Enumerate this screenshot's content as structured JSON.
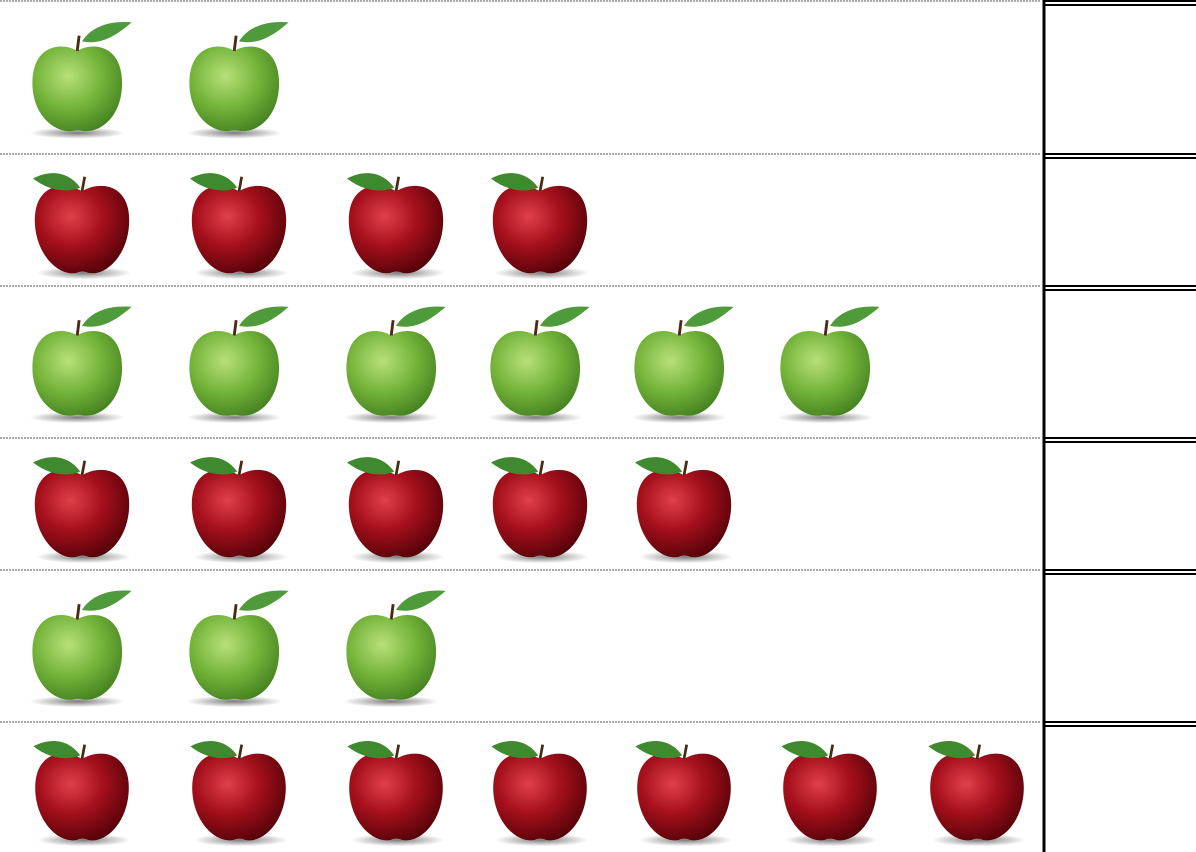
{
  "rows": [
    {
      "color": "green",
      "count": 2
    },
    {
      "color": "red",
      "count": 4
    },
    {
      "color": "green",
      "count": 6
    },
    {
      "color": "red",
      "count": 5
    },
    {
      "color": "green",
      "count": 3
    },
    {
      "color": "red",
      "count": 7
    }
  ]
}
